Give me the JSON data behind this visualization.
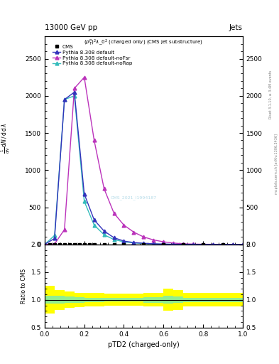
{
  "title_top": "13000 GeV pp",
  "title_right": "Jets",
  "plot_title": "$(p_T^p)^2\\lambda\\_0^2$ (charged only) (CMS jet substructure)",
  "cms_label": "CMS",
  "watermark": "CMS_2021_I1994187",
  "rivet_label": "Rivet 3.1.10, ≥ 3.4M events",
  "inspire_label": "mcplots.cern.ch [arXiv:1306.3436]",
  "xlabel": "pTD2 (charged-only)",
  "ylim": [
    0,
    2800
  ],
  "xlim": [
    0,
    1
  ],
  "ratio_ylim": [
    0.5,
    2.0
  ],
  "pythia_default_x": [
    0.0,
    0.05,
    0.1,
    0.15,
    0.2,
    0.25,
    0.3,
    0.35,
    0.4,
    0.45,
    0.5,
    0.55,
    0.6,
    0.65,
    0.7,
    0.75,
    0.8,
    0.85,
    0.9,
    0.95,
    1.0
  ],
  "pythia_default_y": [
    0,
    80,
    1950,
    2050,
    680,
    330,
    180,
    90,
    45,
    25,
    15,
    8,
    4,
    2,
    1,
    1,
    0,
    0,
    0,
    0,
    0
  ],
  "pythia_nofsr_x": [
    0.0,
    0.05,
    0.1,
    0.15,
    0.2,
    0.25,
    0.3,
    0.35,
    0.4,
    0.45,
    0.5,
    0.55,
    0.6,
    0.65,
    0.7,
    0.75,
    0.8,
    0.85,
    0.9,
    0.95,
    1.0
  ],
  "pythia_nofsr_y": [
    0,
    5,
    200,
    2100,
    2250,
    1400,
    750,
    420,
    260,
    165,
    100,
    60,
    35,
    18,
    8,
    4,
    2,
    1,
    1,
    0,
    0
  ],
  "pythia_norap_x": [
    0.0,
    0.05,
    0.1,
    0.15,
    0.2,
    0.25,
    0.3,
    0.35,
    0.4,
    0.45,
    0.5,
    0.55,
    0.6,
    0.65,
    0.7,
    0.75,
    0.8,
    0.85,
    0.9,
    0.95,
    1.0
  ],
  "pythia_norap_y": [
    0,
    120,
    1950,
    2000,
    580,
    260,
    130,
    65,
    35,
    20,
    12,
    6,
    3,
    1,
    1,
    0,
    0,
    0,
    0,
    0,
    0
  ],
  "cms_x": [
    0.025,
    0.05,
    0.075,
    0.1,
    0.125,
    0.15,
    0.175,
    0.2,
    0.225,
    0.25,
    0.3,
    0.35,
    0.4,
    0.5,
    0.6,
    0.7,
    0.8,
    0.9
  ],
  "cms_y": [
    0,
    0,
    0,
    0,
    0,
    0,
    0,
    0,
    0,
    0,
    0,
    0,
    0,
    0,
    0,
    0,
    0,
    0
  ],
  "color_default": "#3333bb",
  "color_nofsr": "#bb33bb",
  "color_norap": "#33bbbb",
  "color_cms": "#000000",
  "background_color": "#ffffff",
  "ratio_x_edges": [
    0.0,
    0.05,
    0.1,
    0.15,
    0.2,
    0.3,
    0.5,
    0.6,
    0.65,
    0.7,
    1.0
  ],
  "yellow_lo": [
    0.75,
    0.82,
    0.85,
    0.87,
    0.88,
    0.89,
    0.88,
    0.8,
    0.82,
    0.88,
    0.88
  ],
  "yellow_hi": [
    1.25,
    1.18,
    1.15,
    1.13,
    1.12,
    1.11,
    1.12,
    1.2,
    1.18,
    1.12,
    1.12
  ],
  "green_lo": [
    0.93,
    0.93,
    0.94,
    0.95,
    0.96,
    0.97,
    0.95,
    0.93,
    0.94,
    0.96,
    0.96
  ],
  "green_hi": [
    1.07,
    1.07,
    1.06,
    1.05,
    1.04,
    1.03,
    1.05,
    1.07,
    1.06,
    1.04,
    1.04
  ]
}
